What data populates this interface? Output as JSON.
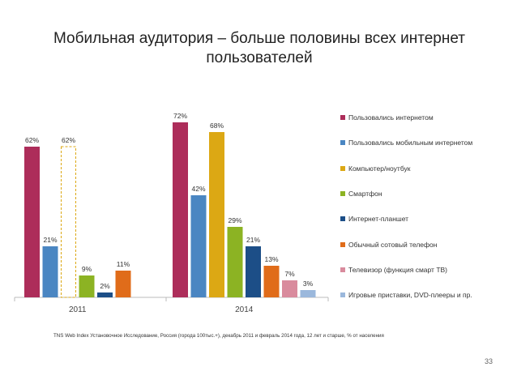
{
  "title": "Мобильная аудитория – больше половины всех интернет пользователей",
  "chart_data": {
    "type": "bar",
    "categories": [
      "2011",
      "2014"
    ],
    "ylim": [
      0,
      80
    ],
    "grid": false,
    "legend_position": "right",
    "series": [
      {
        "name": "Пользовались интернетом",
        "color": "#ad2d5a",
        "values": [
          62,
          72
        ],
        "labels": [
          "62%",
          "72%"
        ]
      },
      {
        "name": "Пользовались мобильным интернетом",
        "color": "#4a86c2",
        "values": [
          21,
          42
        ],
        "labels": [
          "21%",
          "42%"
        ]
      },
      {
        "name": "Компьютер/ноутбук",
        "color": "#dca814",
        "values": [
          62,
          68
        ],
        "labels": [
          "62%",
          "68%"
        ],
        "dashed_outline": [
          true,
          false
        ]
      },
      {
        "name": "Смартфон",
        "color": "#8cb323",
        "values": [
          9,
          29
        ],
        "labels": [
          "9%",
          "29%"
        ]
      },
      {
        "name": "Интернет-планшет",
        "color": "#1c4e87",
        "values": [
          2,
          21
        ],
        "labels": [
          "2%",
          "21%"
        ]
      },
      {
        "name": "Обычный сотовый телефон",
        "color": "#e06c1a",
        "values": [
          11,
          13
        ],
        "labels": [
          "11%",
          "13%"
        ]
      },
      {
        "name": "Телевизор (функция смарт ТВ)",
        "color": "#d98b9d",
        "values": [
          null,
          7
        ],
        "labels": [
          "",
          "7%"
        ]
      },
      {
        "name": "Игровые приставки, DVD-плееры и пр.",
        "color": "#9bb8dc",
        "values": [
          null,
          3
        ],
        "labels": [
          "",
          "3%"
        ]
      }
    ]
  },
  "footnote": "TNS Web Index Установочное Исследование, Россия (города 100тыс.+), декабрь 2011 и февраль 2014 года, 12 лет и старше, % от населения",
  "page_number": "33"
}
